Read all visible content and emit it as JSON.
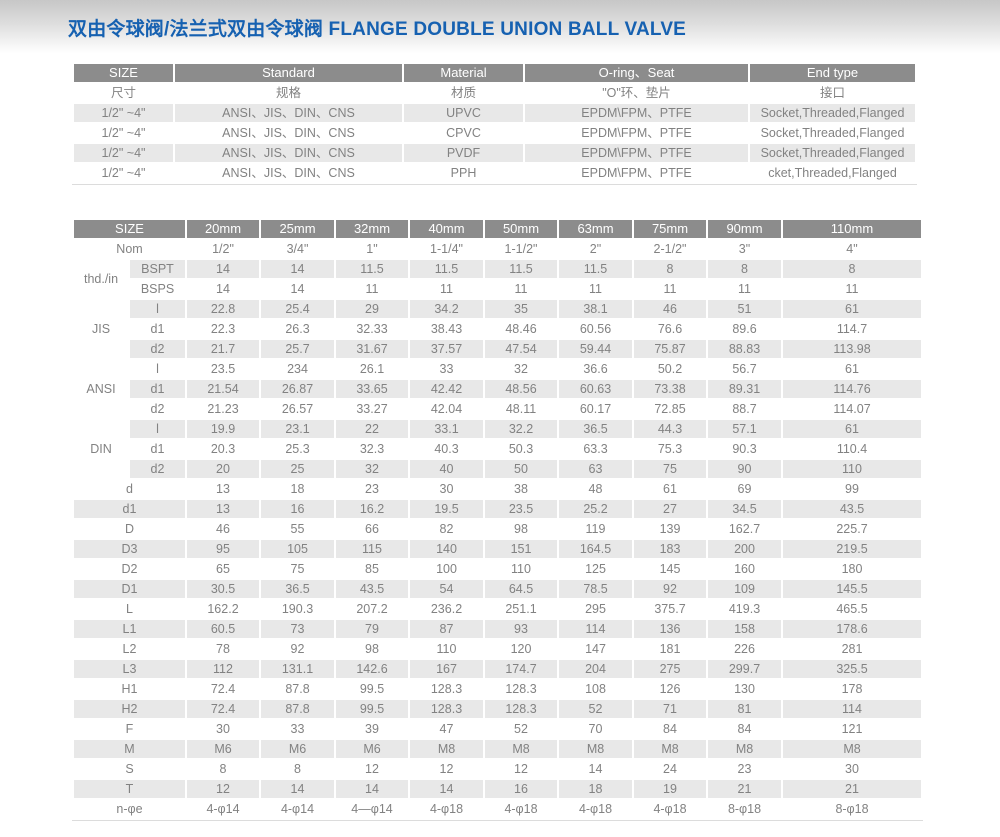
{
  "title": "双由令球阀/法兰式双由令球阀 FLANGE DOUBLE UNION BALL VALVE",
  "colors": {
    "title_blue": "#1661b1",
    "header_gray": "#8c8c8c",
    "row_stripe_gray": "#e8e8e8",
    "cell_text_gray": "#828282"
  },
  "spec_table": {
    "headers_en": [
      "SIZE",
      "Standard",
      "Material",
      "O-ring、Seat",
      "End type"
    ],
    "headers_cn": [
      "尺寸",
      "规格",
      "材质",
      "\"O\"环、垫片",
      "接口"
    ],
    "rows": [
      [
        "1/2\" ~4\"",
        "ANSI、JIS、DIN、CNS",
        "UPVC",
        "EPDM\\FPM、PTFE",
        "Socket,Threaded,Flanged"
      ],
      [
        "1/2\" ~4\"",
        "ANSI、JIS、DIN、CNS",
        "CPVC",
        "EPDM\\FPM、PTFE",
        "Socket,Threaded,Flanged"
      ],
      [
        "1/2\" ~4\"",
        "ANSI、JIS、DIN、CNS",
        "PVDF",
        "EPDM\\FPM、PTFE",
        "Socket,Threaded,Flanged"
      ],
      [
        "1/2\" ~4\"",
        "ANSI、JIS、DIN、CNS",
        "PPH",
        "EPDM\\FPM、PTFE",
        "cket,Threaded,Flanged"
      ]
    ]
  },
  "dim_table": {
    "size_header": "SIZE",
    "columns": [
      "20mm",
      "25mm",
      "32mm",
      "40mm",
      "50mm",
      "63mm",
      "75mm",
      "90mm",
      "110mm"
    ],
    "nom": {
      "label": "Nom",
      "values": [
        "1/2\"",
        "3/4\"",
        "1\"",
        "1-1/4\"",
        "1-1/2\"",
        "2\"",
        "2-1/2\"",
        "3\"",
        "4\""
      ]
    },
    "groups": [
      {
        "label": "thd./in",
        "rows": [
          {
            "sub": "BSPT",
            "values": [
              "14",
              "14",
              "11.5",
              "11.5",
              "11.5",
              "11.5",
              "8",
              "8",
              "8"
            ]
          },
          {
            "sub": "BSPS",
            "values": [
              "14",
              "14",
              "11",
              "11",
              "11",
              "11",
              "11",
              "11",
              "11"
            ]
          }
        ]
      },
      {
        "label": "JIS",
        "rows": [
          {
            "sub": "l",
            "values": [
              "22.8",
              "25.4",
              "29",
              "34.2",
              "35",
              "38.1",
              "46",
              "51",
              "61"
            ]
          },
          {
            "sub": "d1",
            "values": [
              "22.3",
              "26.3",
              "32.33",
              "38.43",
              "48.46",
              "60.56",
              "76.6",
              "89.6",
              "114.7"
            ]
          },
          {
            "sub": "d2",
            "values": [
              "21.7",
              "25.7",
              "31.67",
              "37.57",
              "47.54",
              "59.44",
              "75.87",
              "88.83",
              "113.98"
            ]
          }
        ]
      },
      {
        "label": "ANSI",
        "rows": [
          {
            "sub": "l",
            "values": [
              "23.5",
              "234",
              "26.1",
              "33",
              "32",
              "36.6",
              "50.2",
              "56.7",
              "61"
            ]
          },
          {
            "sub": "d1",
            "values": [
              "21.54",
              "26.87",
              "33.65",
              "42.42",
              "48.56",
              "60.63",
              "73.38",
              "89.31",
              "114.76"
            ]
          },
          {
            "sub": "d2",
            "values": [
              "21.23",
              "26.57",
              "33.27",
              "42.04",
              "48.11",
              "60.17",
              "72.85",
              "88.7",
              "114.07"
            ]
          }
        ]
      },
      {
        "label": "DIN",
        "rows": [
          {
            "sub": "l",
            "values": [
              "19.9",
              "23.1",
              "22",
              "33.1",
              "32.2",
              "36.5",
              "44.3",
              "57.1",
              "61"
            ]
          },
          {
            "sub": "d1",
            "values": [
              "20.3",
              "25.3",
              "32.3",
              "40.3",
              "50.3",
              "63.3",
              "75.3",
              "90.3",
              "110.4"
            ]
          },
          {
            "sub": "d2",
            "values": [
              "20",
              "25",
              "32",
              "40",
              "50",
              "63",
              "75",
              "90",
              "110"
            ]
          }
        ]
      }
    ],
    "simple_rows": [
      {
        "label": "d",
        "values": [
          "13",
          "18",
          "23",
          "30",
          "38",
          "48",
          "61",
          "69",
          "99"
        ]
      },
      {
        "label": "d1",
        "values": [
          "13",
          "16",
          "16.2",
          "19.5",
          "23.5",
          "25.2",
          "27",
          "34.5",
          "43.5"
        ]
      },
      {
        "label": "D",
        "values": [
          "46",
          "55",
          "66",
          "82",
          "98",
          "119",
          "139",
          "162.7",
          "225.7"
        ]
      },
      {
        "label": "D3",
        "values": [
          "95",
          "105",
          "115",
          "140",
          "151",
          "164.5",
          "183",
          "200",
          "219.5"
        ]
      },
      {
        "label": "D2",
        "values": [
          "65",
          "75",
          "85",
          "100",
          "110",
          "125",
          "145",
          "160",
          "180"
        ]
      },
      {
        "label": "D1",
        "values": [
          "30.5",
          "36.5",
          "43.5",
          "54",
          "64.5",
          "78.5",
          "92",
          "109",
          "145.5"
        ]
      },
      {
        "label": "L",
        "values": [
          "162.2",
          "190.3",
          "207.2",
          "236.2",
          "251.1",
          "295",
          "375.7",
          "419.3",
          "465.5"
        ]
      },
      {
        "label": "L1",
        "values": [
          "60.5",
          "73",
          "79",
          "87",
          "93",
          "114",
          "136",
          "158",
          "178.6"
        ]
      },
      {
        "label": "L2",
        "values": [
          "78",
          "92",
          "98",
          "110",
          "120",
          "147",
          "181",
          "226",
          "281"
        ]
      },
      {
        "label": "L3",
        "values": [
          "112",
          "131.1",
          "142.6",
          "167",
          "174.7",
          "204",
          "275",
          "299.7",
          "325.5"
        ]
      },
      {
        "label": "H1",
        "values": [
          "72.4",
          "87.8",
          "99.5",
          "128.3",
          "128.3",
          "108",
          "126",
          "130",
          "178"
        ]
      },
      {
        "label": "H2",
        "values": [
          "72.4",
          "87.8",
          "99.5",
          "128.3",
          "128.3",
          "52",
          "71",
          "81",
          "114"
        ]
      },
      {
        "label": "F",
        "values": [
          "30",
          "33",
          "39",
          "47",
          "52",
          "70",
          "84",
          "84",
          "121"
        ]
      },
      {
        "label": "M",
        "values": [
          "M6",
          "M6",
          "M6",
          "M8",
          "M8",
          "M8",
          "M8",
          "M8",
          "M8"
        ]
      },
      {
        "label": "S",
        "values": [
          "8",
          "8",
          "12",
          "12",
          "12",
          "14",
          "24",
          "23",
          "30"
        ]
      },
      {
        "label": "T",
        "values": [
          "12",
          "14",
          "14",
          "14",
          "16",
          "18",
          "19",
          "21",
          "21"
        ]
      },
      {
        "label": "n-φe",
        "values": [
          "4-φ14",
          "4-φ14",
          "4—φ14",
          "4-φ18",
          "4-φ18",
          "4-φ18",
          "4-φ18",
          "8-φ18",
          "8-φ18"
        ]
      }
    ]
  }
}
